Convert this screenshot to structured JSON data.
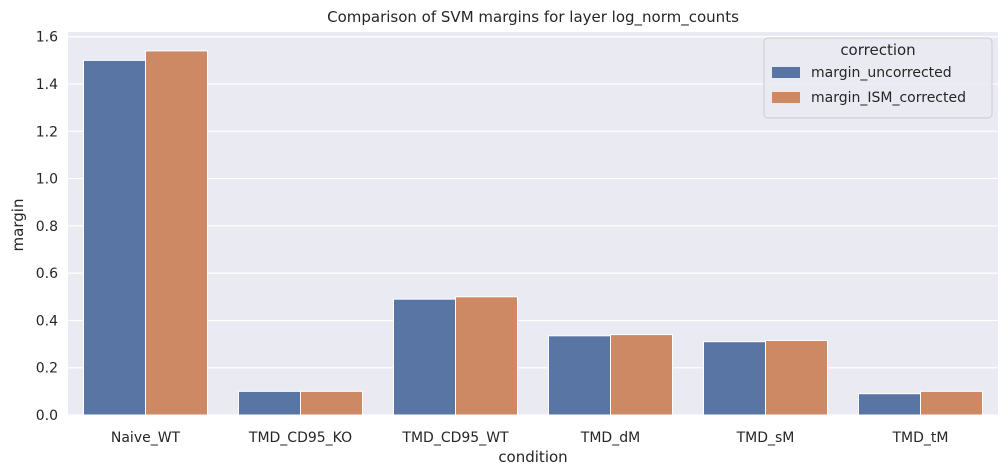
{
  "chart_data": {
    "type": "bar",
    "title": "Comparison of SVM margins for layer log_norm_counts",
    "xlabel": "condition",
    "ylabel": "margin",
    "categories": [
      "Naive_WT",
      "TMD_CD95_KO",
      "TMD_CD95_WT",
      "TMD_dM",
      "TMD_sM",
      "TMD_tM"
    ],
    "series": [
      {
        "name": "margin_uncorrected",
        "color": "#5875a4",
        "values": [
          1.5,
          0.1,
          0.49,
          0.335,
          0.31,
          0.09
        ]
      },
      {
        "name": "margin_ISM_corrected",
        "color": "#cc8963",
        "values": [
          1.54,
          0.1,
          0.5,
          0.34,
          0.315,
          0.1
        ]
      }
    ],
    "ylim": [
      0,
      1.62
    ],
    "yticks": [
      0.0,
      0.2,
      0.4,
      0.6,
      0.8,
      1.0,
      1.2,
      1.4,
      1.6
    ],
    "ytick_labels": [
      "0.0",
      "0.2",
      "0.4",
      "0.6",
      "0.8",
      "1.0",
      "1.2",
      "1.4",
      "1.6"
    ],
    "legend": {
      "title": "correction",
      "placement": "top-right"
    },
    "grid": true,
    "background": "#eaeaf2",
    "grid_color": "#ffffff"
  }
}
